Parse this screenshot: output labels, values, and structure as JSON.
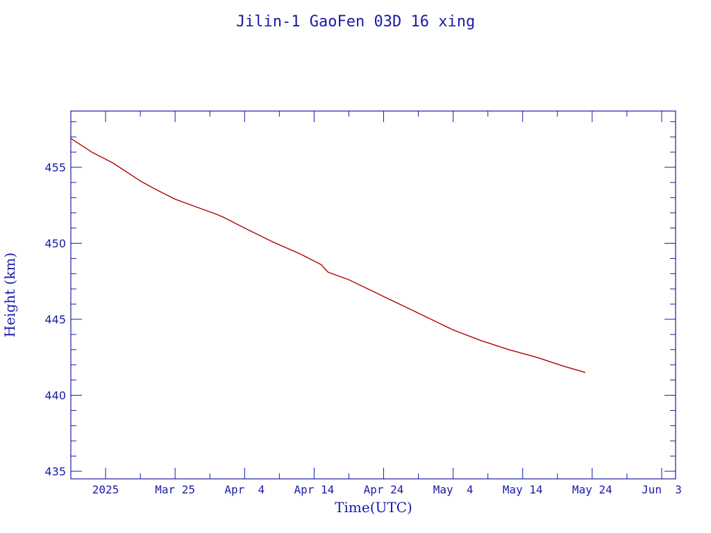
{
  "chart_data": {
    "type": "line",
    "title": "Jilin-1 GaoFen 03D 16 xing",
    "xlabel": "Time(UTC)",
    "ylabel": "Height (km)",
    "xlim": [
      "2025-03-10",
      "2025-06-05"
    ],
    "ylim": [
      434.5,
      458.7
    ],
    "x_ticks": [
      {
        "date": "2025-03-15",
        "label": "2025"
      },
      {
        "date": "2025-03-25",
        "label": "Mar 25"
      },
      {
        "date": "2025-04-04",
        "label": "Apr  4"
      },
      {
        "date": "2025-04-14",
        "label": "Apr 14"
      },
      {
        "date": "2025-04-24",
        "label": "Apr 24"
      },
      {
        "date": "2025-05-04",
        "label": "May  4"
      },
      {
        "date": "2025-05-14",
        "label": "May 14"
      },
      {
        "date": "2025-05-24",
        "label": "May 24"
      },
      {
        "date": "2025-06-03",
        "label": "Jun  3"
      }
    ],
    "y_ticks": [
      435,
      440,
      445,
      450,
      455
    ],
    "grid": false,
    "series": [
      {
        "color": "#b00000",
        "x": [
          "2025-03-10",
          "2025-03-13",
          "2025-03-16",
          "2025-03-17",
          "2025-03-19",
          "2025-03-20",
          "2025-03-22",
          "2025-03-25",
          "2025-03-28",
          "2025-03-31",
          "2025-04-01",
          "2025-04-04",
          "2025-04-08",
          "2025-04-12",
          "2025-04-15",
          "2025-04-16",
          "2025-04-19",
          "2025-04-24",
          "2025-04-29",
          "2025-05-04",
          "2025-05-08",
          "2025-05-12",
          "2025-05-16",
          "2025-05-20",
          "2025-05-23"
        ],
        "y": [
          456.9,
          456.0,
          455.3,
          455.0,
          454.4,
          454.1,
          453.6,
          452.9,
          452.4,
          451.9,
          451.7,
          451.0,
          450.1,
          449.3,
          448.6,
          448.1,
          447.6,
          446.5,
          445.4,
          444.3,
          443.6,
          443.0,
          442.5,
          441.9,
          441.5
        ]
      }
    ]
  }
}
